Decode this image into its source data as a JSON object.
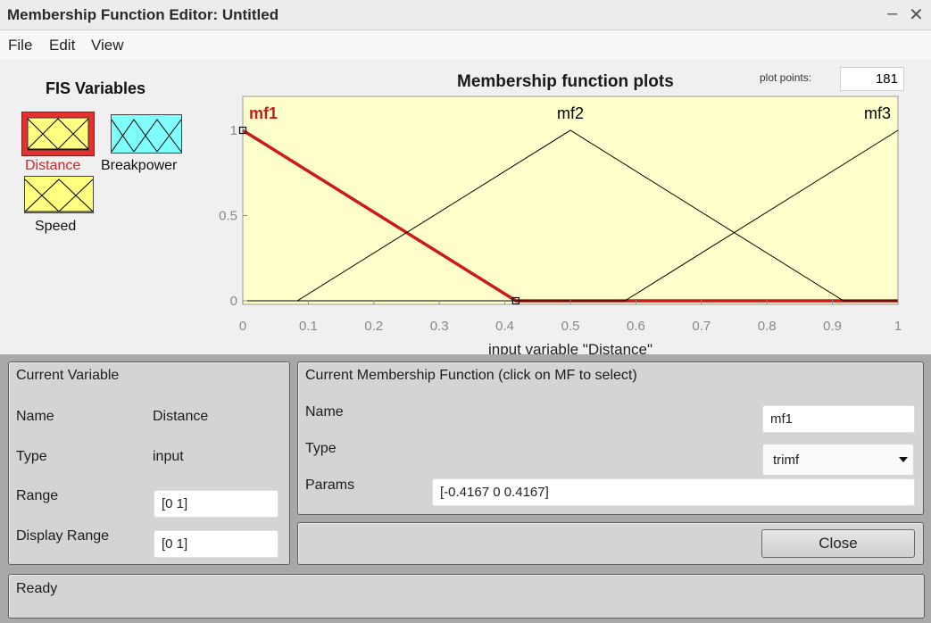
{
  "window": {
    "title": "Membership Function Editor: Untitled",
    "minimize_glyph": "–",
    "close_glyph": "✕"
  },
  "menu": {
    "items": [
      "File",
      "Edit",
      "View"
    ]
  },
  "fis": {
    "title": "FIS Variables",
    "variables": [
      {
        "name": "Distance",
        "selected": true,
        "mf_count": 3
      },
      {
        "name": "Breakpower",
        "selected": false,
        "mf_count": 4
      },
      {
        "name": "Speed",
        "selected": false,
        "mf_count": 3
      }
    ]
  },
  "plot": {
    "title": "Membership function plots",
    "plot_points_label": "plot points:",
    "plot_points": "181",
    "xlabel": "input variable \"Distance\""
  },
  "chart_data": {
    "type": "line",
    "xlim": [
      0,
      1
    ],
    "ylim": [
      0,
      1
    ],
    "x_ticks": [
      "0",
      "0.1",
      "0.2",
      "0.3",
      "0.4",
      "0.5",
      "0.6",
      "0.7",
      "0.8",
      "0.9",
      "1"
    ],
    "y_ticks": [
      "0",
      "0.5",
      "1"
    ],
    "series": [
      {
        "name": "mf1",
        "selected": true,
        "params": [
          -0.4167,
          0,
          0.4167
        ]
      },
      {
        "name": "mf2",
        "selected": false,
        "params": [
          0.0833,
          0.5,
          0.9167
        ]
      },
      {
        "name": "mf3",
        "selected": false,
        "params": [
          0.5833,
          1,
          1.4167
        ]
      }
    ],
    "colors": {
      "background": "#ffffcc",
      "selected": "#cc1a1a",
      "normal": "#000000"
    }
  },
  "current_variable": {
    "header": "Current Variable",
    "name_label": "Name",
    "name_value": "Distance",
    "type_label": "Type",
    "type_value": "input",
    "range_label": "Range",
    "range_value": "[0 1]",
    "display_range_label": "Display Range",
    "display_range_value": "[0 1]"
  },
  "current_mf": {
    "header": "Current Membership Function (click on MF to select)",
    "name_label": "Name",
    "name_value": "mf1",
    "type_label": "Type",
    "type_value": "trimf",
    "params_label": "Params",
    "params_value": "[-0.4167 0 0.4167]"
  },
  "buttons": {
    "close": "Close"
  },
  "status": {
    "text": "Ready"
  }
}
